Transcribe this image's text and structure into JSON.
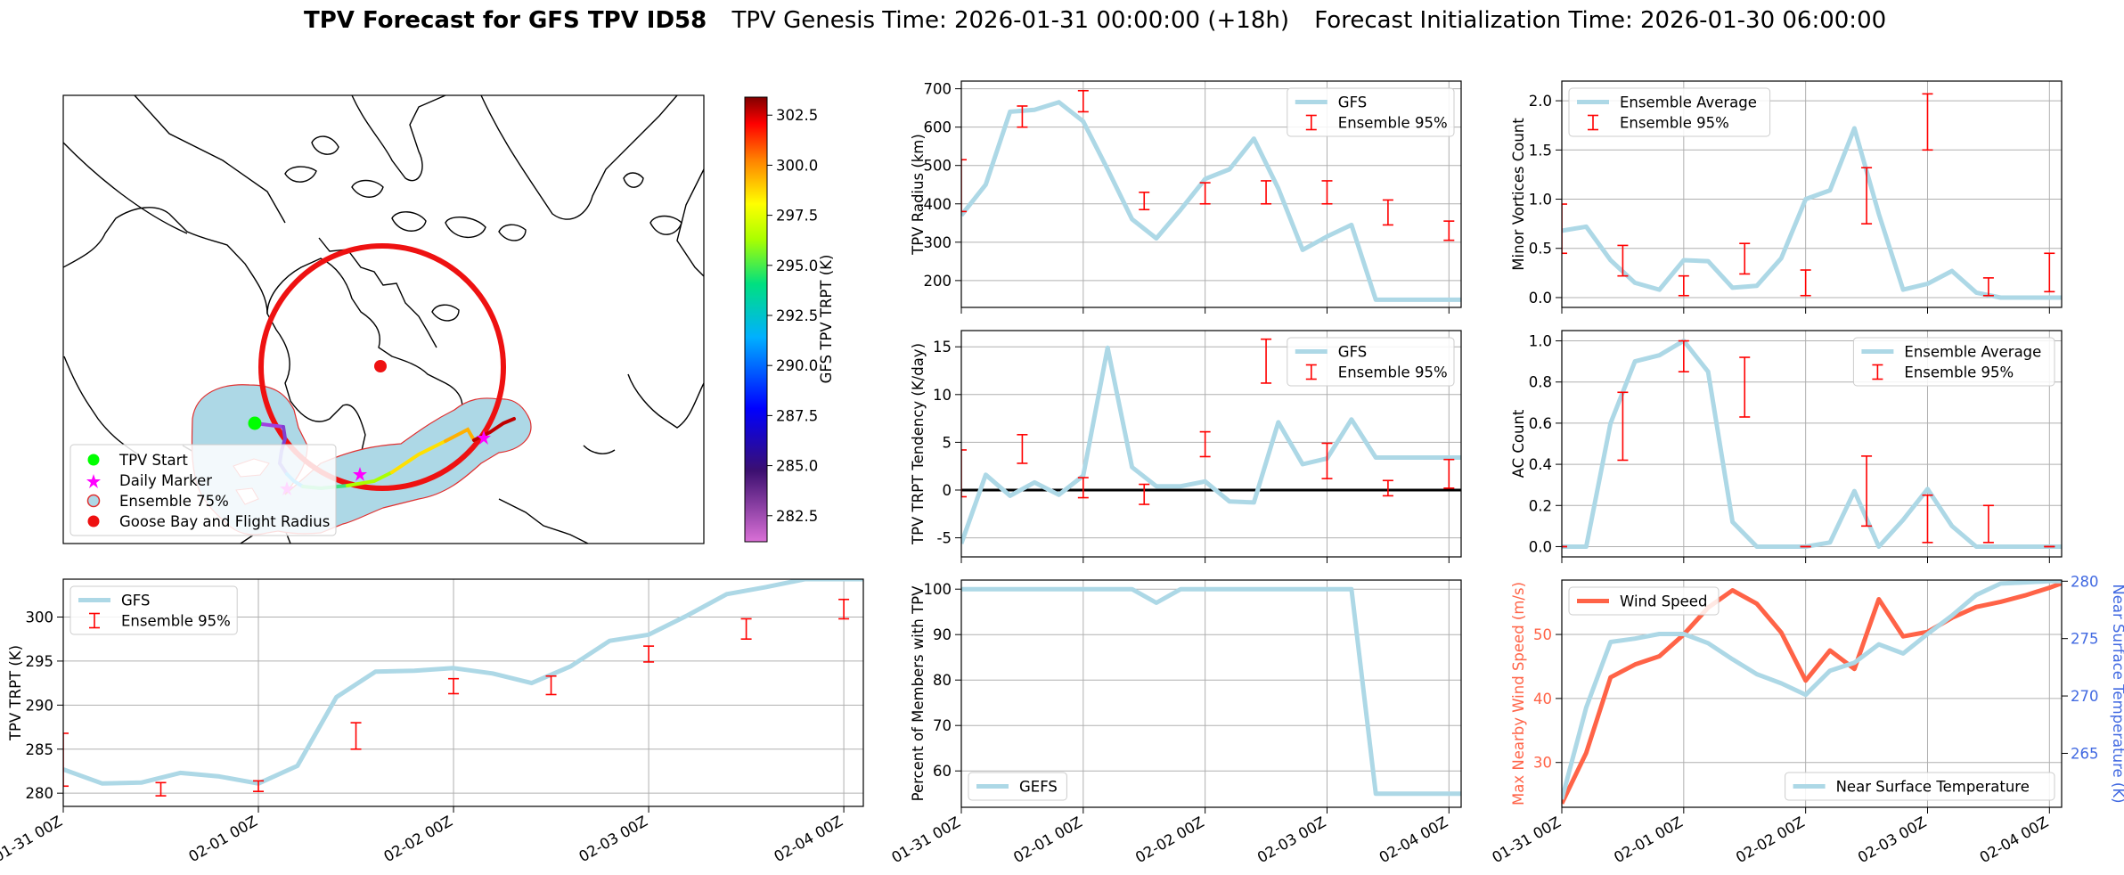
{
  "suptitle": {
    "bold": "TPV Forecast for GFS TPV ID58",
    "genesis": "TPV Genesis Time: 2026-01-31 00:00:00 (+18h)",
    "init": "Forecast Initialization Time: 2026-01-30 06:00:00"
  },
  "colors": {
    "gfs_line": "#add8e6",
    "ensemble_err": "#ff0000",
    "wind_speed": "#ff6347",
    "temp_axis": "#4169e1",
    "zero_line": "#000000"
  },
  "x_ticks": [
    "01-31 00Z",
    "02-01 00Z",
    "02-02 00Z",
    "02-03 00Z",
    "02-04 00Z"
  ],
  "map": {
    "colorbar": {
      "label": "GFS TPV TRPT (K)",
      "ticks": [
        "282.5",
        "285.0",
        "287.5",
        "290.0",
        "292.5",
        "295.0",
        "297.5",
        "300.0",
        "302.5"
      ],
      "range": [
        281.2,
        303.4
      ]
    },
    "legend": [
      "TPV Start",
      "Daily Marker",
      "Ensemble 75%",
      "Goose Bay and Flight Radius"
    ],
    "legend_colors": [
      "#00ff00",
      "#ff00ff",
      "#add8e6",
      "#ff0000"
    ]
  },
  "chart_data": [
    {
      "id": "trpt",
      "type": "line",
      "ylabel": "TPV TRPT (K)",
      "xlim": [
        0,
        20.5
      ],
      "ylim": [
        278.5,
        304.3
      ],
      "yticks": [
        280,
        285,
        290,
        295,
        300
      ],
      "legend": [
        "GFS",
        "Ensemble 95%"
      ],
      "legend_loc": "upper-left",
      "series": [
        {
          "name": "GFS",
          "x": [
            0,
            1,
            2,
            3,
            4,
            5,
            6,
            7,
            8,
            9,
            10,
            11,
            12,
            13,
            14,
            15,
            16,
            17,
            18,
            19,
            20,
            20.5
          ],
          "values": [
            282.7,
            281.1,
            281.2,
            282.3,
            281.9,
            281.1,
            283.1,
            290.9,
            293.8,
            293.9,
            294.2,
            293.6,
            292.5,
            294.4,
            297.3,
            298,
            300.2,
            302.6,
            303.4,
            304.3,
            304.3,
            304.3
          ]
        }
      ],
      "error_bars": [
        {
          "x": 0,
          "low": 280.8,
          "high": 286.8
        },
        {
          "x": 2.5,
          "low": 279.7,
          "high": 281.2
        },
        {
          "x": 5,
          "low": 280.2,
          "high": 281.4
        },
        {
          "x": 7.5,
          "low": 285,
          "high": 288
        },
        {
          "x": 10,
          "low": 291.3,
          "high": 293
        },
        {
          "x": 12.5,
          "low": 291.2,
          "high": 293.3
        },
        {
          "x": 15,
          "low": 294.9,
          "high": 296.7
        },
        {
          "x": 17.5,
          "low": 297.5,
          "high": 299.8
        },
        {
          "x": 20,
          "low": 299.8,
          "high": 302
        }
      ]
    },
    {
      "id": "radius",
      "type": "line",
      "ylabel": "TPV Radius (km)",
      "xlim": [
        0,
        20.5
      ],
      "ylim": [
        130,
        720
      ],
      "yticks": [
        200,
        300,
        400,
        500,
        600,
        700
      ],
      "legend": [
        "GFS",
        "Ensemble 95%"
      ],
      "legend_loc": "upper-right",
      "series": [
        {
          "name": "GFS",
          "x": [
            0,
            1,
            2,
            3,
            4,
            5,
            6,
            7,
            8,
            9,
            10,
            11,
            12,
            13,
            14,
            15,
            16,
            17,
            18,
            19,
            20,
            20.5
          ],
          "values": [
            370,
            450,
            640,
            645,
            665,
            615,
            490,
            360,
            310,
            385,
            465,
            490,
            570,
            440,
            280,
            315,
            345,
            150,
            150,
            150,
            150,
            150
          ]
        }
      ],
      "error_bars": [
        {
          "x": 0,
          "low": 380,
          "high": 515
        },
        {
          "x": 2.5,
          "low": 600,
          "high": 655
        },
        {
          "x": 5,
          "low": 640,
          "high": 695
        },
        {
          "x": 7.5,
          "low": 385,
          "high": 430
        },
        {
          "x": 10,
          "low": 400,
          "high": 455
        },
        {
          "x": 12.5,
          "low": 400,
          "high": 460
        },
        {
          "x": 15,
          "low": 400,
          "high": 460
        },
        {
          "x": 17.5,
          "low": 345,
          "high": 410
        },
        {
          "x": 20,
          "low": 305,
          "high": 355
        }
      ]
    },
    {
      "id": "minor",
      "type": "line",
      "ylabel": "Minor Vortices Count",
      "xlim": [
        0,
        20.5
      ],
      "ylim": [
        -0.1,
        2.2
      ],
      "yticks": [
        0.0,
        0.5,
        1.0,
        1.5,
        2.0
      ],
      "legend": [
        "Ensemble Average",
        "Ensemble 95%"
      ],
      "legend_loc": "upper-left",
      "series": [
        {
          "name": "Ensemble Average",
          "x": [
            0,
            1,
            2,
            3,
            4,
            5,
            6,
            7,
            8,
            9,
            10,
            11,
            12,
            13,
            14,
            15,
            16,
            17,
            18,
            19,
            20,
            20.5
          ],
          "values": [
            0.68,
            0.72,
            0.38,
            0.15,
            0.08,
            0.38,
            0.37,
            0.1,
            0.12,
            0.4,
            1.0,
            1.09,
            1.72,
            0.85,
            0.08,
            0.14,
            0.27,
            0.05,
            0,
            0,
            0,
            0
          ]
        }
      ],
      "error_bars": [
        {
          "x": 0,
          "low": 0.45,
          "high": 0.95
        },
        {
          "x": 2.5,
          "low": 0.22,
          "high": 0.53
        },
        {
          "x": 5,
          "low": 0.02,
          "high": 0.22
        },
        {
          "x": 7.5,
          "low": 0.24,
          "high": 0.55
        },
        {
          "x": 10,
          "low": 0.02,
          "high": 0.28
        },
        {
          "x": 12.5,
          "low": 0.75,
          "high": 1.32
        },
        {
          "x": 15,
          "low": 1.5,
          "high": 2.07
        },
        {
          "x": 17.5,
          "low": 0.02,
          "high": 0.2
        },
        {
          "x": 20,
          "low": 0.06,
          "high": 0.45
        }
      ]
    },
    {
      "id": "tendency",
      "type": "line",
      "ylabel": "TPV TRPT Tendency (K/day)",
      "xlim": [
        0,
        20.5
      ],
      "ylim": [
        -7,
        16.7
      ],
      "yticks": [
        -5,
        0,
        5,
        10,
        15
      ],
      "zero_line": 0,
      "legend": [
        "GFS",
        "Ensemble 95%"
      ],
      "legend_loc": "upper-right",
      "series": [
        {
          "name": "GFS",
          "x": [
            0,
            1,
            2,
            3,
            4,
            5,
            6,
            7,
            8,
            9,
            10,
            11,
            12,
            13,
            14,
            15,
            16,
            17,
            18,
            19,
            20,
            20.5
          ],
          "values": [
            -5.6,
            1.6,
            -0.6,
            0.8,
            -0.5,
            1.5,
            14.9,
            2.4,
            0.4,
            0.4,
            0.9,
            -1.2,
            -1.3,
            7.1,
            2.7,
            3.3,
            7.4,
            3.4,
            3.4,
            3.4,
            3.4,
            3.4
          ]
        }
      ],
      "error_bars": [
        {
          "x": 0,
          "low": -0.7,
          "high": 4.2
        },
        {
          "x": 2.5,
          "low": 2.8,
          "high": 5.8
        },
        {
          "x": 5,
          "low": -0.8,
          "high": 1.3
        },
        {
          "x": 7.5,
          "low": -1.5,
          "high": 0.6
        },
        {
          "x": 10,
          "low": 3.5,
          "high": 6.1
        },
        {
          "x": 12.5,
          "low": 11.2,
          "high": 15.8
        },
        {
          "x": 15,
          "low": 1.2,
          "high": 4.9
        },
        {
          "x": 17.5,
          "low": -0.6,
          "high": 1.0
        },
        {
          "x": 20,
          "low": 0.2,
          "high": 3.2
        }
      ]
    },
    {
      "id": "ac",
      "type": "line",
      "ylabel": "AC Count",
      "xlim": [
        0,
        20.5
      ],
      "ylim": [
        -0.05,
        1.05
      ],
      "yticks": [
        0.0,
        0.2,
        0.4,
        0.6,
        0.8,
        1.0
      ],
      "legend": [
        "Ensemble Average",
        "Ensemble 95%"
      ],
      "legend_loc": "upper-right",
      "series": [
        {
          "name": "Ensemble Average",
          "x": [
            0,
            1,
            2,
            3,
            4,
            5,
            6,
            7,
            8,
            9,
            10,
            11,
            12,
            13,
            14,
            15,
            16,
            17,
            18,
            19,
            20,
            20.5
          ],
          "values": [
            0,
            0,
            0.6,
            0.9,
            0.93,
            1.0,
            0.85,
            0.12,
            0,
            0,
            0,
            0.02,
            0.27,
            0.0,
            0.13,
            0.28,
            0.1,
            0,
            0,
            0,
            0,
            0
          ]
        }
      ],
      "error_bars": [
        {
          "x": 0,
          "low": 0,
          "high": 0
        },
        {
          "x": 2.5,
          "low": 0.42,
          "high": 0.75
        },
        {
          "x": 5,
          "low": 0.85,
          "high": 1.0
        },
        {
          "x": 7.5,
          "low": 0.63,
          "high": 0.92
        },
        {
          "x": 10,
          "low": 0,
          "high": 0
        },
        {
          "x": 12.5,
          "low": 0.1,
          "high": 0.44
        },
        {
          "x": 15,
          "low": 0.02,
          "high": 0.25
        },
        {
          "x": 17.5,
          "low": 0.02,
          "high": 0.2
        },
        {
          "x": 20,
          "low": 0,
          "high": 0
        }
      ]
    },
    {
      "id": "percent",
      "type": "line",
      "ylabel": "Percent of Members with TPV",
      "xlim": [
        0,
        20.5
      ],
      "ylim": [
        52,
        102
      ],
      "yticks": [
        60,
        70,
        80,
        90,
        100
      ],
      "legend": [
        "GEFS"
      ],
      "legend_loc": "lower-left",
      "series": [
        {
          "name": "GEFS",
          "x": [
            0,
            1,
            2,
            3,
            4,
            5,
            6,
            7,
            8,
            9,
            10,
            11,
            12,
            13,
            14,
            15,
            16,
            17,
            18,
            19,
            20,
            20.5
          ],
          "values": [
            100,
            100,
            100,
            100,
            100,
            100,
            100,
            100,
            97,
            100,
            100,
            100,
            100,
            100,
            100,
            100,
            100,
            55,
            55,
            55,
            55,
            55
          ]
        }
      ],
      "error_bars": []
    },
    {
      "id": "wind",
      "type": "line",
      "ylabel": "Max Nearby Wind Speed (m/s)",
      "y2label": "Near Surface Temperature (K)",
      "xlim": [
        0,
        20.5
      ],
      "ylim": [
        23,
        58.5
      ],
      "yticks": [
        30,
        40,
        50
      ],
      "y2lim": [
        260.3,
        280.1
      ],
      "y2ticks": [
        265,
        270,
        275,
        280
      ],
      "legend": [
        "Wind Speed"
      ],
      "legend2": [
        "Near Surface Temperature"
      ],
      "series": [
        {
          "name": "Wind Speed",
          "x": [
            0,
            1,
            2,
            3,
            4,
            5,
            6,
            7,
            8,
            9,
            10,
            11,
            12,
            13,
            14,
            15,
            16,
            17,
            18,
            19,
            20,
            20.5
          ],
          "values": [
            23.6,
            31.5,
            43.3,
            45.3,
            46.6,
            50,
            54.2,
            56.9,
            54.8,
            50.3,
            42.8,
            47.5,
            44.6,
            55.5,
            49.7,
            50.4,
            52.6,
            54.3,
            55.1,
            56.1,
            57.3,
            58.0
          ]
        },
        {
          "name": "Near Surface Temperature",
          "x": [
            0,
            1,
            2,
            3,
            4,
            5,
            6,
            7,
            8,
            9,
            10,
            11,
            12,
            13,
            14,
            15,
            16,
            17,
            18,
            19,
            20,
            20.5
          ],
          "values": [
            261,
            269,
            274.7,
            275,
            275.4,
            275.4,
            274.6,
            273.2,
            271.9,
            271.1,
            270.1,
            272.2,
            272.9,
            274.5,
            273.7,
            275.4,
            277,
            278.8,
            279.8,
            279.9,
            280,
            280
          ]
        }
      ],
      "error_bars": []
    }
  ]
}
